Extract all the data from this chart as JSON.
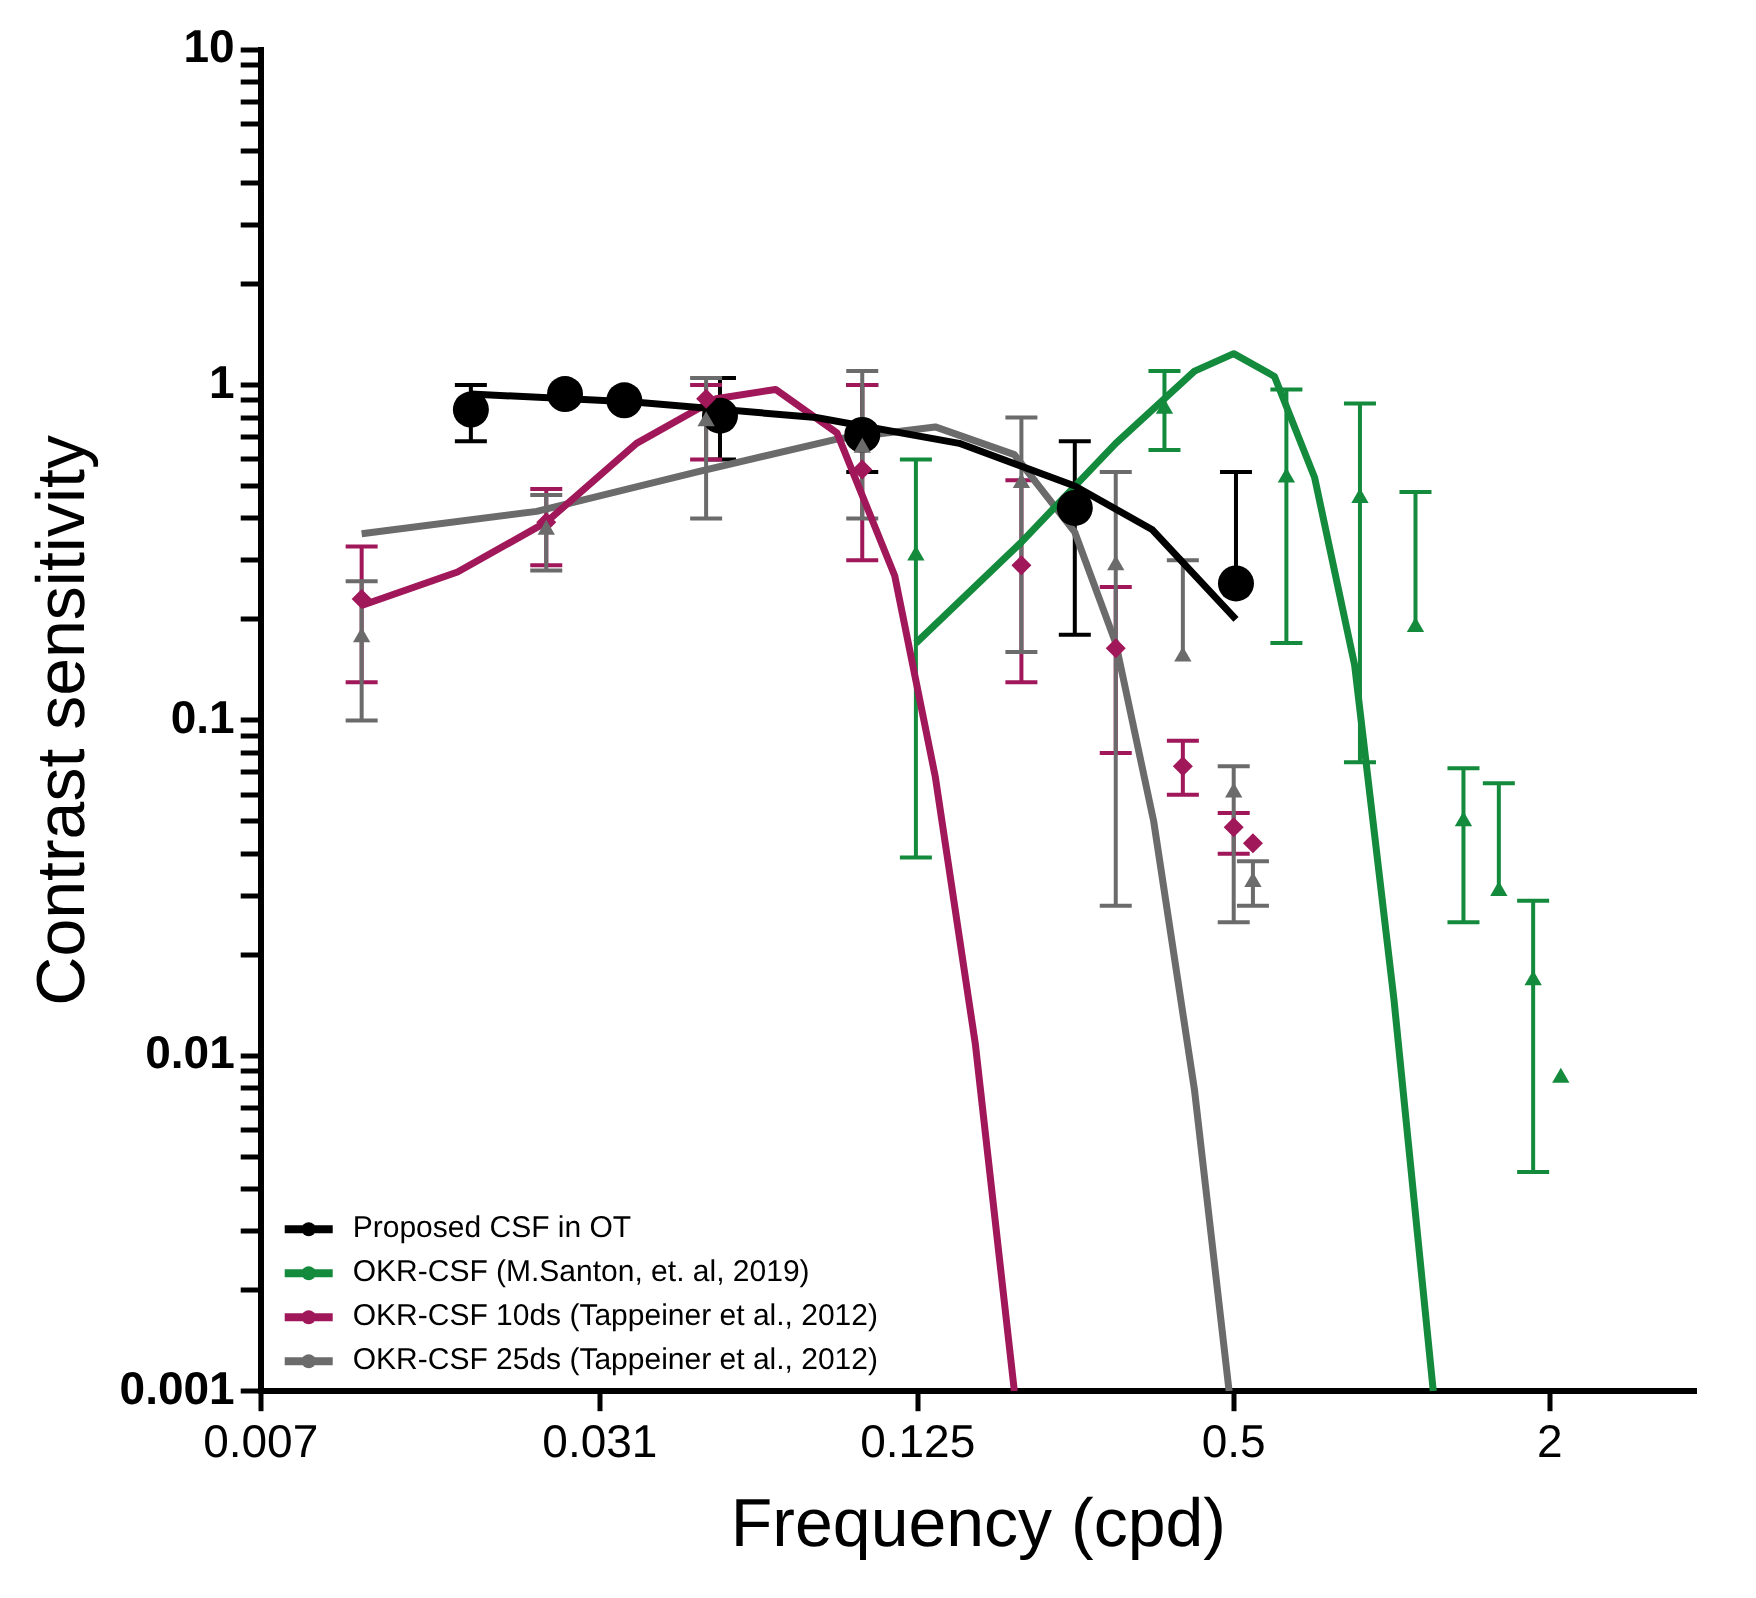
{
  "chart_data": {
    "type": "scatter",
    "xlabel": "Frequency (cpd)",
    "ylabel": "Contrast sensitivity",
    "log": "xy",
    "grid": false,
    "legend": "bottom left",
    "xlim": [
      0.007,
      3.8
    ],
    "ylim": [
      0.001,
      10
    ],
    "xticks": [
      0.007,
      0.031,
      0.125,
      0.5,
      2
    ],
    "yticks": [
      0.001,
      {
        "value": 0.002,
        "label": null
      },
      {
        "value": 0.003,
        "label": null
      },
      {
        "value": 0.004,
        "label": null
      },
      {
        "value": 0.005,
        "label": null
      },
      {
        "value": 0.006,
        "label": null
      },
      {
        "value": 0.007,
        "label": null
      },
      {
        "value": 0.008,
        "label": null
      },
      {
        "value": 0.009,
        "label": null
      },
      0.01,
      {
        "value": 0.02,
        "label": null
      },
      {
        "value": 0.03,
        "label": null
      },
      {
        "value": 0.04,
        "label": null
      },
      {
        "value": 0.05,
        "label": null
      },
      {
        "value": 0.06,
        "label": null
      },
      {
        "value": 0.07,
        "label": null
      },
      {
        "value": 0.08,
        "label": null
      },
      {
        "value": 0.09,
        "label": null
      },
      0.1,
      {
        "value": 0.2,
        "label": null
      },
      {
        "value": 0.3,
        "label": null
      },
      {
        "value": 0.4,
        "label": null
      },
      {
        "value": 0.5,
        "label": null
      },
      {
        "value": 0.6,
        "label": null
      },
      {
        "value": 0.7,
        "label": null
      },
      {
        "value": 0.8,
        "label": null
      },
      {
        "value": 0.9,
        "label": null
      },
      1,
      {
        "value": 2,
        "label": null
      },
      {
        "value": 3,
        "label": null
      },
      {
        "value": 4,
        "label": null
      },
      {
        "value": 5,
        "label": null
      },
      {
        "value": 6,
        "label": null
      },
      {
        "value": 7,
        "label": null
      },
      {
        "value": 8,
        "label": null
      },
      {
        "value": 9,
        "label": null
      },
      10
    ],
    "series": [
      {
        "name": "Proposed CSF in OT",
        "color": "#000000",
        "marker": "circle",
        "x": [
          0.0176,
          0.0266,
          0.0345,
          0.0525,
          0.098,
          0.249,
          0.505
        ],
        "values": [
          0.845,
          0.94,
          0.9,
          0.81,
          0.71,
          0.43,
          0.256
        ],
        "errors": [
          [
            0.68,
            1.0
          ],
          null,
          null,
          [
            0.6,
            1.05
          ],
          [
            0.55,
            1.0
          ],
          [
            0.18,
            0.68
          ],
          [
            0.256,
            0.55
          ]
        ]
      },
      {
        "name": "OKR-CSF (M.Santon, et. al, 2019)",
        "color": "#138a3c",
        "marker": "triangle",
        "x": [
          0.124,
          0.369,
          0.63,
          0.87,
          1.11,
          1.37,
          1.6,
          1.86,
          2.1
        ],
        "values": [
          0.31,
          0.85,
          0.53,
          0.46,
          0.19,
          0.05,
          0.031,
          0.0168,
          0.0086
        ],
        "errors": [
          [
            0.039,
            0.6
          ],
          [
            0.64,
            1.1
          ],
          [
            0.17,
            0.97
          ],
          [
            0.075,
            0.88
          ],
          [
            0.19,
            0.48
          ],
          [
            0.025,
            0.072
          ],
          [
            0.031,
            0.065
          ],
          [
            0.0045,
            0.029
          ],
          null
        ]
      },
      {
        "name": "OKR-CSF 10ds (Tappeiner et al., 2012)",
        "color": "#a0175a",
        "marker": "diamond",
        "x": [
          0.0109,
          0.0245,
          0.0494,
          0.098,
          0.197,
          0.298,
          0.4,
          0.5,
          0.544
        ],
        "values": [
          0.23,
          0.39,
          0.91,
          0.56,
          0.29,
          0.164,
          0.073,
          0.048,
          0.043
        ],
        "errors": [
          [
            0.13,
            0.33
          ],
          [
            0.29,
            0.49
          ],
          [
            0.6,
            1.0
          ],
          [
            0.3,
            1.0
          ],
          [
            0.13,
            0.52
          ],
          [
            0.08,
            0.25
          ],
          [
            0.06,
            0.087
          ],
          [
            0.04,
            0.053
          ],
          null
        ]
      },
      {
        "name": "OKR-CSF 25ds (Tappeiner et al., 2012)",
        "color": "#6b6b6b",
        "marker": "triangle",
        "x": [
          0.0109,
          0.0245,
          0.0494,
          0.098,
          0.197,
          0.298,
          0.4,
          0.5,
          0.544
        ],
        "values": [
          0.177,
          0.37,
          0.78,
          0.65,
          0.51,
          0.29,
          0.155,
          0.061,
          0.033
        ],
        "errors": [
          [
            0.1,
            0.26
          ],
          [
            0.28,
            0.47
          ],
          [
            0.4,
            1.05
          ],
          [
            0.4,
            1.1
          ],
          [
            0.16,
            0.8
          ],
          [
            0.028,
            0.55
          ],
          [
            0.155,
            0.3
          ],
          [
            0.025,
            0.073
          ],
          [
            0.028,
            0.038
          ]
        ]
      },
      {
        "type": "line",
        "color": "#000000",
        "marker": "none",
        "x": [
          0.0176,
          0.036,
          0.08,
          0.15,
          0.249,
          0.35,
          0.505
        ],
        "values": [
          0.94,
          0.89,
          0.8,
          0.67,
          0.5,
          0.37,
          0.2
        ]
      },
      {
        "type": "line",
        "color": "#138a3c",
        "marker": "none",
        "x": [
          0.124,
          0.197,
          0.298,
          0.421,
          0.5,
          0.598,
          0.713,
          0.85,
          1.01,
          1.2
        ],
        "values": [
          0.17,
          0.34,
          0.67,
          1.1,
          1.24,
          1.06,
          0.53,
          0.146,
          0.0147,
          0.001
        ]
      },
      {
        "type": "line",
        "color": "#a0175a",
        "marker": "none",
        "x": [
          0.0109,
          0.0166,
          0.0245,
          0.0364,
          0.0516,
          0.067,
          0.0877,
          0.113,
          0.135,
          0.161,
          0.191
        ],
        "values": [
          0.22,
          0.277,
          0.39,
          0.67,
          0.91,
          0.97,
          0.72,
          0.27,
          0.068,
          0.0108,
          0.001
        ]
      },
      {
        "type": "line",
        "color": "#6b6b6b",
        "marker": "none",
        "x": [
          0.0109,
          0.0235,
          0.0473,
          0.0877,
          0.135,
          0.191,
          0.249,
          0.298,
          0.352,
          0.421,
          0.49
        ],
        "values": [
          0.36,
          0.42,
          0.55,
          0.69,
          0.75,
          0.62,
          0.364,
          0.17,
          0.05,
          0.0079,
          0.001
        ]
      }
    ]
  }
}
